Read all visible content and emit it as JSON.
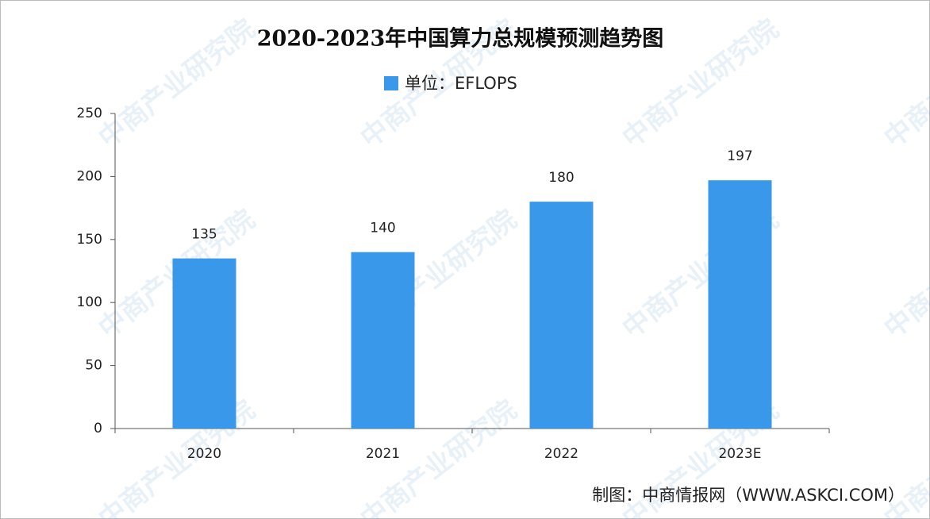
{
  "chart_data": {
    "type": "bar",
    "title": "2020-2023年中国算力总规模预测趋势图",
    "categories": [
      "2020",
      "2021",
      "2022",
      "2023E"
    ],
    "series": [
      {
        "name": "单位：EFLOPS",
        "color": "#3a98ea",
        "values": [
          135,
          140,
          180,
          197
        ]
      }
    ],
    "ylim": [
      0,
      250
    ],
    "yticks": [
      0,
      50,
      100,
      150,
      200,
      250
    ],
    "grid": false,
    "legend": "top",
    "source": "制图：中商情报网（WWW.ASKCI.COM）",
    "watermark": "中商产业研究院"
  }
}
